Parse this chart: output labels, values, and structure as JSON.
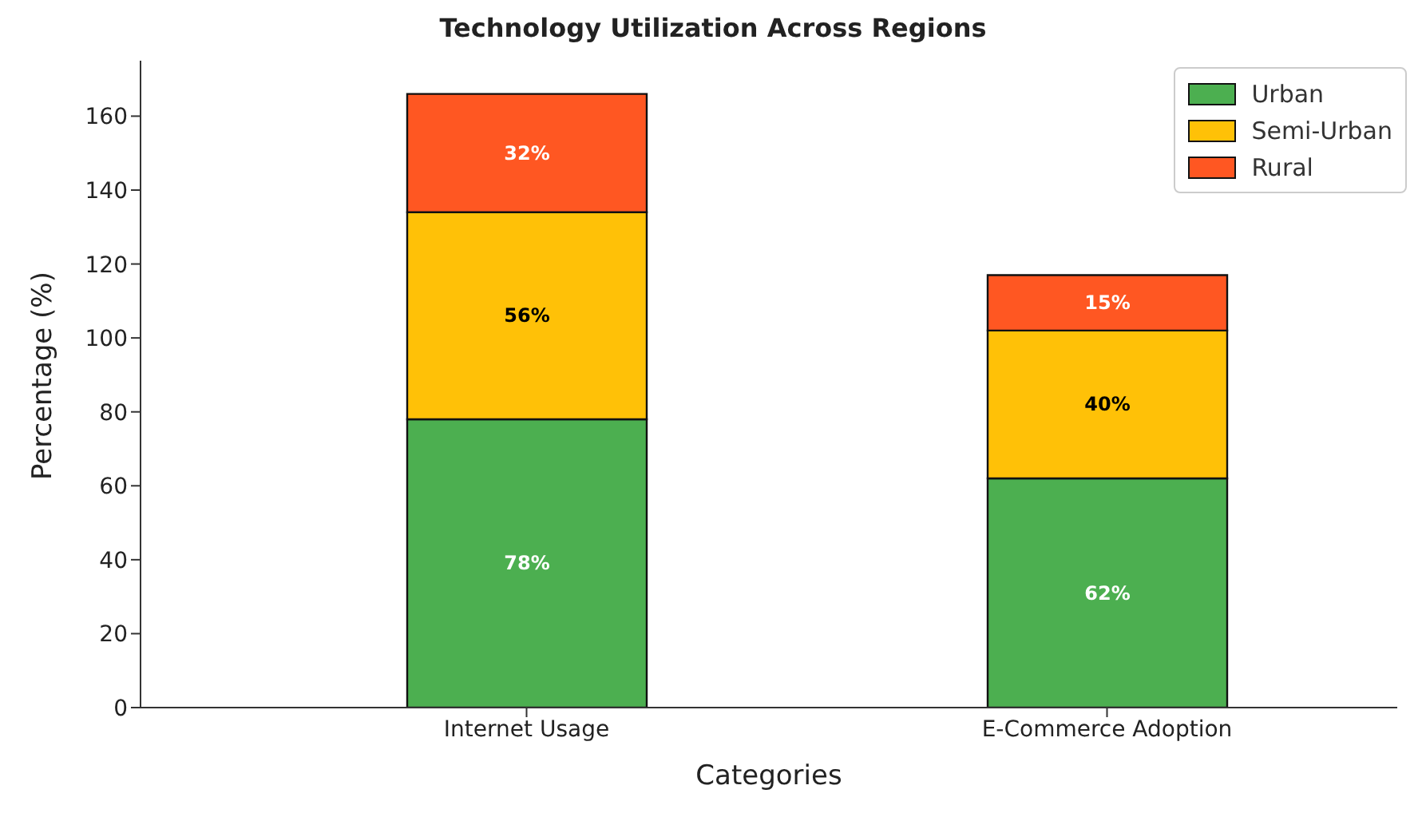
{
  "chart_data": {
    "type": "bar",
    "title": "Technology Utilization Across Regions",
    "xlabel": "Categories",
    "ylabel": "Percentage (%)",
    "categories": [
      "Internet Usage",
      "E-Commerce Adoption"
    ],
    "stacked": true,
    "series": [
      {
        "name": "Urban",
        "color": "#4caf50",
        "values": [
          78,
          62
        ],
        "value_labels": [
          "78%",
          "62%"
        ]
      },
      {
        "name": "Semi-Urban",
        "color": "#ffc107",
        "values": [
          56,
          40
        ],
        "value_labels": [
          "56%",
          "40%"
        ]
      },
      {
        "name": "Rural",
        "color": "#ff5722",
        "values": [
          32,
          15
        ],
        "value_labels": [
          "32%",
          "15%"
        ]
      }
    ],
    "ylim": [
      0,
      175
    ],
    "yticks": [
      0,
      20,
      40,
      60,
      80,
      100,
      120,
      140,
      160
    ],
    "legend": "top right"
  }
}
